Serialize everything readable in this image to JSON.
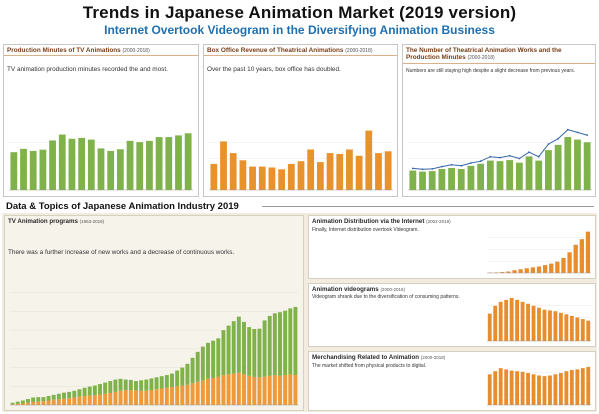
{
  "header": {
    "title": "Trends in Japanese Animation Market (2019 version)",
    "subtitle": "Internet Overtook Videogram in the Diversifying Animation Business"
  },
  "panels": {
    "production": {
      "heading": "Production Minutes of TV Animations",
      "years": "(2000-2018)",
      "lead": "TV animation production minutes recorded the and most."
    },
    "boxoffice": {
      "heading": "Box Office Revenue of Theatrical Animations",
      "years": "(2000-2018)",
      "lead": "Over the past 10 years, box office has doubled."
    },
    "theatrical_works": {
      "heading": "The Number of Theatrical Animation Works and the Production Minutes",
      "years": "(2000-2018)",
      "lead": "Numbers are still staying high despite a slight decrease from previous years."
    }
  },
  "section": {
    "title": "Data & Topics of Japanese Animation Industry 2019"
  },
  "tv_programs": {
    "heading": "TV Animation programs",
    "years": "(1963-2018)",
    "lead": "There was a further increase of new works and a decrease of continuous works."
  },
  "right_panels": {
    "internet": {
      "heading": "Animation Distribution via the Internet",
      "years": "(2002-2018)",
      "lead": "Finally, Internet distribution overtook Videogram."
    },
    "videograms": {
      "heading": "Animation videograms",
      "years": "(2000-2018)",
      "lead": "Videogram shrank due to the diversification of consuming patterns."
    },
    "merch": {
      "heading": "Merchandising Related to Animation",
      "years": "(2000-2018)",
      "lead": "The market shifted from physical products to digital."
    }
  },
  "colors": {
    "production_bars": "#7fb24a",
    "boxoffice_bars": "#e8922e",
    "works_bars": "#7fb24a",
    "works_line": "#3566a8",
    "tv_new": "#7fb24a",
    "tv_cont": "#ee9a3a",
    "right_bars": "#e88d2e"
  },
  "chart_data": [
    {
      "type": "bar",
      "x": [
        2000,
        2001,
        2002,
        2003,
        2004,
        2005,
        2006,
        2007,
        2008,
        2009,
        2010,
        2011,
        2012,
        2013,
        2014,
        2015,
        2016,
        2017,
        2018
      ],
      "values": [
        90,
        98,
        93,
        96,
        118,
        132,
        122,
        124,
        120,
        99,
        93,
        97,
        117,
        114,
        117,
        126,
        126,
        130,
        135
      ],
      "ylim": [
        0,
        150
      ]
    },
    {
      "type": "bar",
      "x": [
        2000,
        2001,
        2002,
        2003,
        2004,
        2005,
        2006,
        2007,
        2008,
        2009,
        2010,
        2011,
        2012,
        2013,
        2014,
        2015,
        2016,
        2017,
        2018
      ],
      "values": [
        29,
        54,
        41,
        33,
        26,
        26,
        25,
        23,
        29,
        32,
        45,
        31,
        41,
        40,
        45,
        38,
        66,
        41,
        43
      ],
      "ylim": [
        0,
        70
      ]
    },
    {
      "type": "bar",
      "x": [
        2000,
        2001,
        2002,
        2003,
        2004,
        2005,
        2006,
        2007,
        2008,
        2009,
        2010,
        2011,
        2012,
        2013,
        2014,
        2015,
        2016,
        2017,
        2018
      ],
      "series": [
        {
          "values": [
            37,
            35,
            36,
            40,
            42,
            40,
            46,
            50,
            56,
            55,
            57,
            52,
            64,
            56,
            76,
            86,
            101,
            96,
            91
          ]
        },
        {
          "values": [
            2400,
            2300,
            2350,
            2600,
            2800,
            2700,
            3000,
            3200,
            3700,
            3600,
            3800,
            3500,
            4200,
            3700,
            5100,
            5700,
            6700,
            6400,
            6100
          ]
        }
      ],
      "ylim": [
        0,
        120
      ]
    },
    {
      "type": "bar",
      "x": [
        1963,
        1964,
        1965,
        1966,
        1967,
        1968,
        1969,
        1970,
        1971,
        1972,
        1973,
        1974,
        1975,
        1976,
        1977,
        1978,
        1979,
        1980,
        1981,
        1982,
        1983,
        1984,
        1985,
        1986,
        1987,
        1988,
        1989,
        1990,
        1991,
        1992,
        1993,
        1994,
        1995,
        1996,
        1997,
        1998,
        1999,
        2000,
        2001,
        2002,
        2003,
        2004,
        2005,
        2006,
        2007,
        2008,
        2009,
        2010,
        2011,
        2012,
        2013,
        2014,
        2015,
        2016,
        2017,
        2018
      ],
      "series": [
        {
          "values": [
            4,
            6,
            8,
            10,
            12,
            12,
            11,
            12,
            13,
            15,
            16,
            17,
            18,
            20,
            22,
            24,
            26,
            28,
            30,
            32,
            33,
            32,
            28,
            27,
            25,
            28,
            30,
            31,
            32,
            33,
            34,
            36,
            42,
            48,
            56,
            68,
            80,
            90,
            96,
            100,
            102,
            120,
            130,
            140,
            150,
            140,
            130,
            128,
            130,
            150,
            160,
            165,
            170,
            172,
            176,
            182
          ]
        },
        {
          "values": [
            2,
            3,
            4,
            6,
            8,
            9,
            10,
            12,
            14,
            15,
            17,
            18,
            20,
            22,
            24,
            25,
            26,
            28,
            30,
            32,
            35,
            38,
            40,
            40,
            39,
            38,
            38,
            40,
            42,
            44,
            46,
            48,
            50,
            52,
            54,
            58,
            62,
            66,
            70,
            72,
            76,
            80,
            82,
            84,
            86,
            82,
            78,
            75,
            74,
            76,
            78,
            80,
            78,
            80,
            82,
            80
          ]
        }
      ],
      "ylim": [
        0,
        350
      ]
    },
    {
      "type": "bar",
      "x": [
        2002,
        2003,
        2004,
        2005,
        2006,
        2007,
        2008,
        2009,
        2010,
        2011,
        2012,
        2013,
        2014,
        2015,
        2016,
        2017,
        2018
      ],
      "values": [
        2,
        3,
        5,
        8,
        15,
        20,
        25,
        30,
        35,
        42,
        50,
        60,
        80,
        110,
        150,
        180,
        220
      ],
      "ylim": [
        0,
        250
      ]
    },
    {
      "type": "bar",
      "x": [
        2000,
        2001,
        2002,
        2003,
        2004,
        2005,
        2006,
        2007,
        2008,
        2009,
        2010,
        2011,
        2012,
        2013,
        2014,
        2015,
        2016,
        2017,
        2018
      ],
      "values": [
        700,
        900,
        1000,
        1050,
        1100,
        1050,
        1000,
        950,
        900,
        850,
        800,
        780,
        760,
        720,
        680,
        640,
        600,
        560,
        520
      ],
      "ylim": [
        0,
        1200
      ]
    },
    {
      "type": "bar",
      "x": [
        2000,
        2001,
        2002,
        2003,
        2004,
        2005,
        2006,
        2007,
        2008,
        2009,
        2010,
        2011,
        2012,
        2013,
        2014,
        2015,
        2016,
        2017,
        2018
      ],
      "values": [
        50,
        55,
        60,
        58,
        56,
        55,
        54,
        52,
        50,
        48,
        47,
        48,
        50,
        52,
        55,
        57,
        58,
        60,
        62
      ],
      "ylim": [
        0,
        70
      ]
    }
  ]
}
